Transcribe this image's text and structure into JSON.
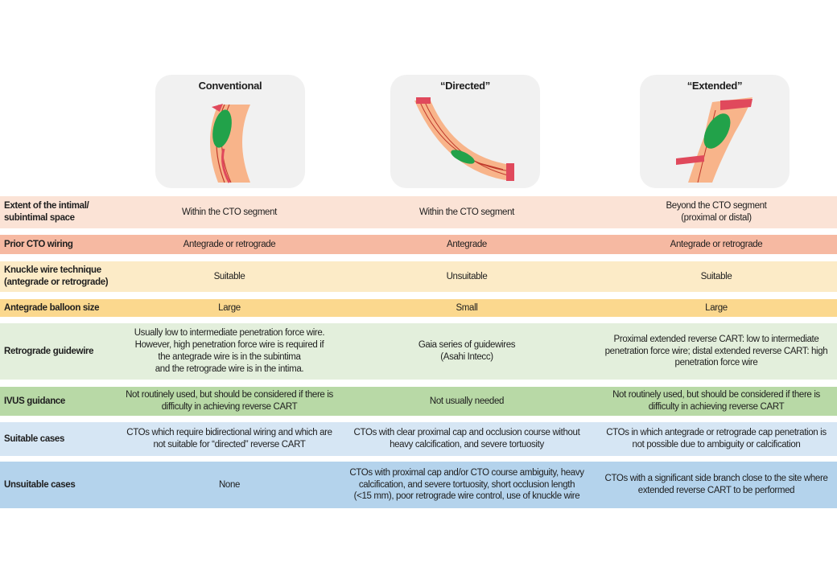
{
  "columns": [
    {
      "title": "Conventional",
      "diagram": "conventional-reverse-cart-diagram"
    },
    {
      "title": "“Directed”",
      "diagram": "directed-reverse-cart-diagram"
    },
    {
      "title": "“Extended”",
      "diagram": "extended-reverse-cart-diagram"
    }
  ],
  "rows": [
    {
      "label": "Extent of the intimal/\nsubintimal space",
      "color": "#fbe3d6",
      "cells": [
        "Within the CTO segment",
        "Within the CTO segment",
        "Beyond the CTO segment\n(proximal or distal)"
      ]
    },
    {
      "label": "Prior CTO wiring",
      "color": "#f6b9a2",
      "cells": [
        "Antegrade or retrograde",
        "Antegrade",
        "Antegrade or retrograde"
      ]
    },
    {
      "label": "Knuckle wire technique\n(antegrade or retrograde)",
      "color": "#fcebc7",
      "cells": [
        "Suitable",
        "Unsuitable",
        "Suitable"
      ]
    },
    {
      "label": "Antegrade balloon size",
      "color": "#fbd88e",
      "cells": [
        "Large",
        "Small",
        "Large"
      ]
    },
    {
      "label": "Retrograde guidewire",
      "color": "#e3efdc",
      "cells": [
        "Usually low to intermediate penetration force wire.\nHowever, high penetration force wire is required if\nthe antegrade wire is in the subintima\nand the retrograde wire is in the intima.",
        "Gaia series of guidewires\n(Asahi Intecc)",
        "Proximal extended reverse CART: low to intermediate\npenetration force wire; distal extended reverse CART: high\npenetration force wire"
      ]
    },
    {
      "label": "IVUS guidance",
      "color": "#b8d9a6",
      "cells": [
        "Not routinely used, but should be considered if there is\ndifficulty in achieving reverse CART",
        "Not usually needed",
        "Not routinely used, but should be considered if there is\ndifficulty in achieving reverse CART"
      ]
    },
    {
      "label": "Suitable cases",
      "color": "#d6e6f4",
      "cells": [
        "CTOs which require bidirectional wiring and which are\nnot suitable for “directed” reverse CART",
        "CTOs with clear proximal cap and occlusion course without\nheavy calcification, and severe tortuosity",
        "CTOs in which antegrade or retrograde cap penetration is\nnot possible due to ambiguity or calcification"
      ]
    },
    {
      "label": "Unsuitable cases",
      "color": "#b4d3ec",
      "cells": [
        "None",
        "CTOs with proximal cap and/or CTO course ambiguity, heavy\ncalcification, and severe tortuosity, short occlusion length\n(<15 mm), poor retrograde wire control, use of knuckle wire",
        "CTOs with a significant side branch close to the site where\nextended reverse CART to be performed"
      ]
    }
  ]
}
